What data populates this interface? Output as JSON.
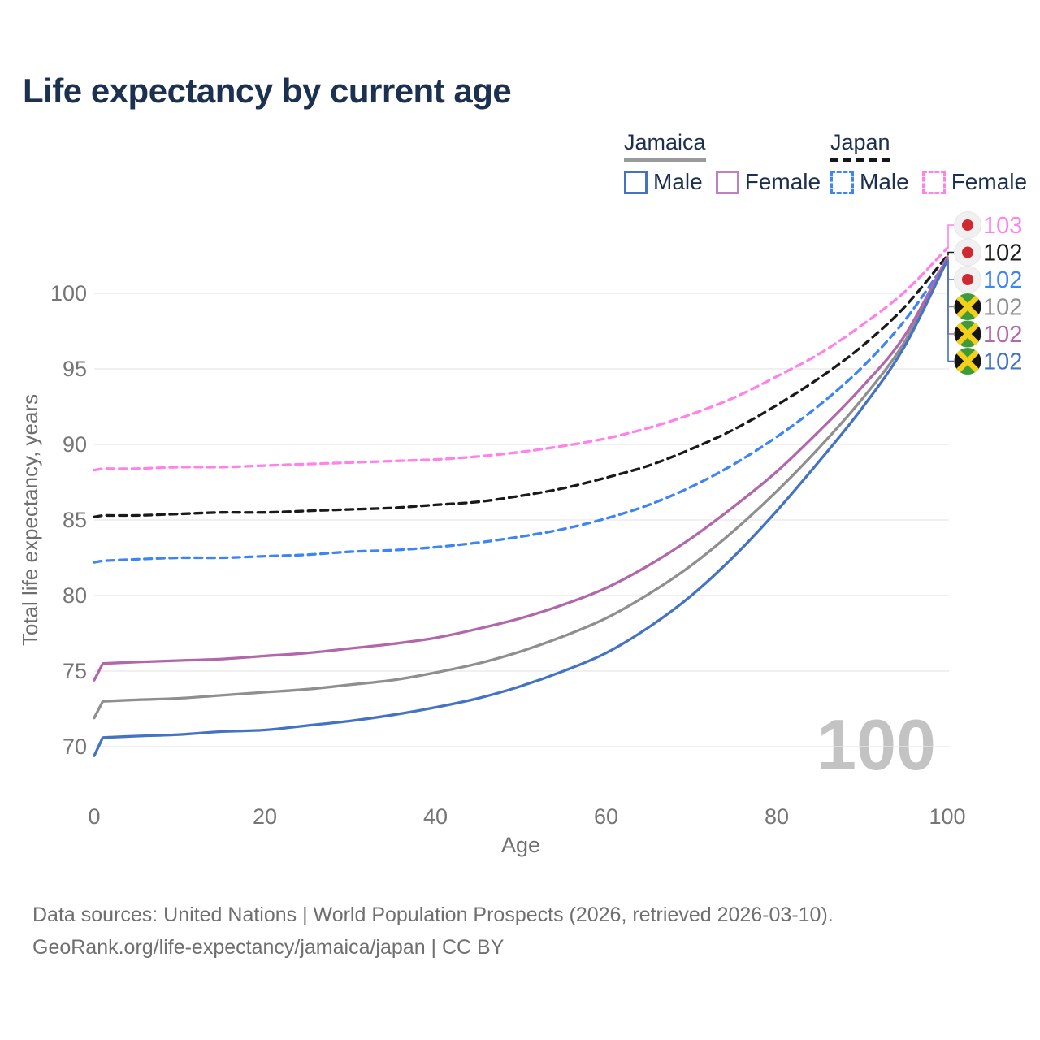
{
  "title": "Life expectancy by current age",
  "legend": {
    "groups": [
      {
        "country": "Jamaica",
        "line_style": "solid",
        "underline_color": "#9a9a9a",
        "items": [
          {
            "label": "Male",
            "color": "#4573c4"
          },
          {
            "label": "Female",
            "color": "#c07fc0"
          }
        ]
      },
      {
        "country": "Japan",
        "line_style": "dashed",
        "underline_color": "#161616",
        "items": [
          {
            "label": "Male",
            "color": "#3d85f2"
          },
          {
            "label": "Female",
            "color": "#ff82e9"
          }
        ]
      }
    ]
  },
  "watermark_age": "100",
  "caption": {
    "line1": "Data sources: United Nations | World Population Prospects (2026, retrieved 2026-03-10).",
    "line2": "GeoRank.org/life-expectancy/jamaica/japan | CC BY"
  },
  "colors": {
    "title": "#1c3150",
    "axis_text": "#757575",
    "axis_title_text": "#6e6e6e",
    "grid": "#e8e8e8",
    "caption": "#6f6f6f",
    "watermark": "#c3c3c3",
    "legend_text": "#1d2f4e"
  },
  "flags": {
    "japan": {
      "background": "#f0f0f0",
      "dot": "#d0282e"
    },
    "jamaica": {
      "green": "#3f9a3a",
      "black": "#141414",
      "gold": "#f5d019"
    }
  },
  "chart_data": {
    "type": "line",
    "title": "Life expectancy by current age",
    "xlabel": "Age",
    "ylabel": "Total life expectancy, years",
    "x_ticks": [
      0,
      20,
      40,
      60,
      80,
      100
    ],
    "y_ticks": [
      70,
      75,
      80,
      85,
      90,
      95,
      100
    ],
    "xlim": [
      0,
      100
    ],
    "ylim": [
      68.5,
      104.5
    ],
    "grid": "horizontal",
    "legend_position": "top-right",
    "x": [
      0,
      1,
      5,
      10,
      15,
      20,
      25,
      30,
      35,
      40,
      45,
      50,
      55,
      60,
      65,
      70,
      75,
      80,
      85,
      90,
      95,
      100
    ],
    "series": [
      {
        "id": "japan_female",
        "name": "Japan Female",
        "country": "Japan",
        "sex": "Female",
        "color": "#ff82e9",
        "dash": true,
        "end_label": "103",
        "flag": "japan",
        "values": [
          88.3,
          88.4,
          88.4,
          88.5,
          88.5,
          88.6,
          88.7,
          88.8,
          88.9,
          89.0,
          89.2,
          89.5,
          89.9,
          90.4,
          91.1,
          92.0,
          93.1,
          94.5,
          96.0,
          97.9,
          100.1,
          103.0
        ]
      },
      {
        "id": "japan_total",
        "name": "Japan",
        "country": "Japan",
        "sex": "Both",
        "color": "#1a1a1a",
        "dash": true,
        "end_label": "102",
        "flag": "japan",
        "values": [
          85.2,
          85.3,
          85.3,
          85.4,
          85.5,
          85.5,
          85.6,
          85.7,
          85.8,
          86.0,
          86.2,
          86.6,
          87.1,
          87.8,
          88.6,
          89.7,
          91.0,
          92.6,
          94.4,
          96.5,
          99.1,
          102.5
        ]
      },
      {
        "id": "japan_male",
        "name": "Japan Male",
        "country": "Japan",
        "sex": "Male",
        "color": "#3d85f2",
        "dash": true,
        "end_label": "102",
        "flag": "japan",
        "values": [
          82.2,
          82.3,
          82.4,
          82.5,
          82.5,
          82.6,
          82.7,
          82.9,
          83.0,
          83.2,
          83.5,
          83.9,
          84.4,
          85.1,
          86.0,
          87.2,
          88.7,
          90.5,
          92.6,
          95.1,
          98.2,
          102.2
        ]
      },
      {
        "id": "jamaica_total",
        "name": "Jamaica",
        "country": "Jamaica",
        "sex": "Both",
        "color": "#8f8f8f",
        "dash": false,
        "end_label": "102",
        "flag": "jamaica",
        "values": [
          71.9,
          73.0,
          73.1,
          73.2,
          73.4,
          73.6,
          73.8,
          74.1,
          74.4,
          74.9,
          75.5,
          76.3,
          77.3,
          78.5,
          80.1,
          82.0,
          84.3,
          86.9,
          89.8,
          93.0,
          96.8,
          102.3
        ]
      },
      {
        "id": "jamaica_female",
        "name": "Jamaica Female",
        "country": "Jamaica",
        "sex": "Female",
        "color": "#b267ab",
        "dash": false,
        "end_label": "102",
        "flag": "jamaica",
        "values": [
          74.4,
          75.5,
          75.6,
          75.7,
          75.8,
          76.0,
          76.2,
          76.5,
          76.8,
          77.2,
          77.8,
          78.5,
          79.4,
          80.5,
          82.0,
          83.8,
          85.9,
          88.2,
          90.9,
          93.8,
          97.2,
          102.4
        ]
      },
      {
        "id": "jamaica_male",
        "name": "Jamaica Male",
        "country": "Jamaica",
        "sex": "Male",
        "color": "#4573c4",
        "dash": false,
        "end_label": "102",
        "flag": "jamaica",
        "values": [
          69.4,
          70.6,
          70.7,
          70.8,
          71.0,
          71.1,
          71.4,
          71.7,
          72.1,
          72.6,
          73.2,
          74.0,
          75.0,
          76.2,
          77.9,
          80.0,
          82.6,
          85.6,
          88.9,
          92.4,
          96.5,
          102.2
        ]
      }
    ]
  }
}
